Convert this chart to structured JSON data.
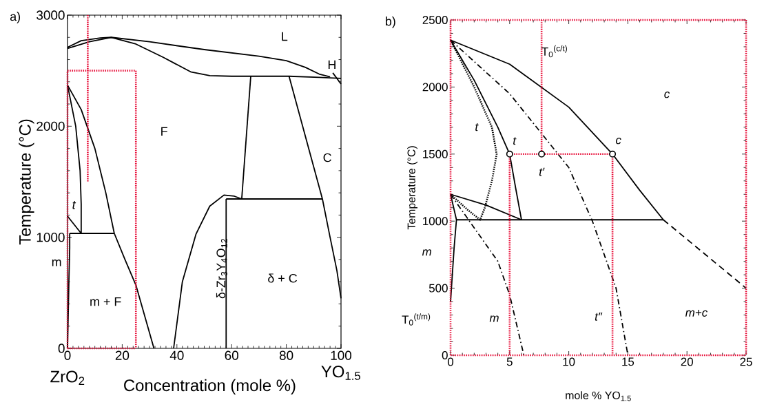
{
  "chart_data": [
    {
      "type": "line",
      "title": "a)",
      "xlabel": "Concentration (mole %)",
      "ylabel": "Temperature  (°C)",
      "xlim": [
        0,
        100
      ],
      "ylim": [
        0,
        3000
      ],
      "xticks": [
        0,
        20,
        40,
        60,
        80,
        100
      ],
      "yticks": [
        0,
        1000,
        2000,
        3000
      ],
      "series": [
        {
          "x": [
            0,
            5,
            12,
            16,
            30,
            50,
            70,
            80,
            87,
            92,
            96
          ],
          "values": [
            2710,
            2770,
            2795,
            2800,
            2760,
            2690,
            2630,
            2590,
            2530,
            2470,
            2445
          ],
          "color": "#000000",
          "line_style": "solid"
        },
        {
          "x": [
            0,
            8,
            16,
            25,
            35,
            45,
            52,
            60,
            67,
            81,
            92,
            100
          ],
          "values": [
            2700,
            2760,
            2800,
            2740,
            2620,
            2490,
            2455,
            2450,
            2450,
            2450,
            2440,
            2430
          ],
          "color": "#000000",
          "line_style": "solid"
        },
        {
          "x": [
            67,
            63.7
          ],
          "values": [
            2450,
            1345
          ],
          "color": "#000000",
          "line_style": "solid"
        },
        {
          "x": [
            81,
            93.2,
            96,
            98.5,
            100
          ],
          "values": [
            2450,
            1345,
            1000,
            700,
            450
          ],
          "color": "#000000",
          "line_style": "solid"
        },
        {
          "x": [
            58,
            93.2
          ],
          "values": [
            1345,
            1345
          ],
          "color": "#000000",
          "line_style": "solid"
        },
        {
          "x": [
            38.8,
            42,
            47,
            52,
            57.2,
            61,
            63.7
          ],
          "values": [
            0,
            600,
            1030,
            1280,
            1380,
            1370,
            1345
          ],
          "color": "#000000",
          "line_style": "solid"
        },
        {
          "x": [
            58,
            58
          ],
          "values": [
            0,
            1345
          ],
          "color": "#000000",
          "line_style": "solid"
        },
        {
          "x": [
            0,
            5,
            10,
            14,
            17.1,
            21,
            25,
            31.6
          ],
          "values": [
            2370,
            2150,
            1800,
            1400,
            1035,
            800,
            570,
            0
          ],
          "color": "#000000",
          "line_style": "solid"
        },
        {
          "x": [
            0,
            3,
            4.6,
            5,
            5
          ],
          "values": [
            2370,
            2000,
            1600,
            1300,
            1035
          ],
          "color": "#000000",
          "line_style": "solid"
        },
        {
          "x": [
            0.8,
            17.1
          ],
          "values": [
            1035,
            1035
          ],
          "color": "#000000",
          "line_style": "solid"
        },
        {
          "x": [
            0,
            5
          ],
          "values": [
            1190,
            1035
          ],
          "color": "#000000",
          "line_style": "solid"
        },
        {
          "x": [
            0,
            0.5,
            0.8,
            0.8
          ],
          "values": [
            0,
            600,
            900,
            1035
          ],
          "color": "#000000",
          "line_style": "solid"
        },
        {
          "x": [
            97,
            100
          ],
          "values": [
            2480,
            2380
          ],
          "color": "#000000",
          "line_style": "solid"
        },
        {
          "x": [
            0,
            25
          ],
          "values": [
            2500,
            2500
          ],
          "color": "#e8103a",
          "line_style": "dotted"
        },
        {
          "x": [
            25,
            25
          ],
          "values": [
            2500,
            0
          ],
          "color": "#e8103a",
          "line_style": "dotted"
        },
        {
          "x": [
            0,
            25
          ],
          "values": [
            0,
            0
          ],
          "color": "#e8103a",
          "line_style": "dotted"
        },
        {
          "x": [
            0,
            0
          ],
          "values": [
            0,
            2500
          ],
          "color": "#e8103a",
          "line_style": "dotted"
        },
        {
          "x": [
            7.4,
            7.4
          ],
          "values": [
            3000,
            1500
          ],
          "color": "#e8103a",
          "line_style": "dotted"
        }
      ],
      "annotations": [
        "L",
        "H",
        "F",
        "C",
        "t",
        "m",
        "m + F",
        "δ-Zr$_{3}$Y$_{4}$O$_{12}$",
        "δ + C",
        "ZrO$_{2}$",
        "YO$_{1.5}$"
      ]
    },
    {
      "type": "line",
      "title": "b)",
      "xlabel": "mole % YO$_{1.5}$",
      "ylabel": "Temperature (°C)",
      "xlim": [
        0,
        25
      ],
      "ylim": [
        0,
        2500
      ],
      "xticks": [
        0,
        5,
        10,
        15,
        20,
        25
      ],
      "yticks": [
        0,
        500,
        1000,
        1500,
        2000,
        2500
      ],
      "series": [
        {
          "x": [
            0,
            5,
            10,
            13.7,
            16,
            18
          ],
          "values": [
            2350,
            2170,
            1850,
            1500,
            1230,
            1010
          ],
          "color": "#000000",
          "line_style": "solid"
        },
        {
          "x": [
            0,
            2,
            4,
            5,
            5.5,
            6
          ],
          "values": [
            2350,
            2050,
            1700,
            1500,
            1250,
            1010
          ],
          "color": "#000000",
          "line_style": "solid"
        },
        {
          "x": [
            0,
            2,
            3.5,
            3.9,
            3.5,
            2.9,
            2.5,
            1.5,
            0
          ],
          "values": [
            2350,
            2000,
            1700,
            1500,
            1300,
            1100,
            1010,
            1080,
            1200
          ],
          "color": "#000000",
          "line_style": "dotted"
        },
        {
          "x": [
            0,
            5,
            10,
            12,
            14,
            15
          ],
          "values": [
            2350,
            1950,
            1400,
            1000,
            500,
            0
          ],
          "color": "#000000",
          "line_style": "dashdot"
        },
        {
          "x": [
            0,
            2,
            4,
            5,
            6.2
          ],
          "values": [
            1200,
            950,
            700,
            450,
            0
          ],
          "color": "#000000",
          "line_style": "dashdot"
        },
        {
          "x": [
            0,
            3,
            6
          ],
          "values": [
            1200,
            1120,
            1010
          ],
          "color": "#000000",
          "line_style": "solid"
        },
        {
          "x": [
            0.5,
            18
          ],
          "values": [
            1010,
            1010
          ],
          "color": "#000000",
          "line_style": "solid"
        },
        {
          "x": [
            18,
            25
          ],
          "values": [
            1010,
            500
          ],
          "color": "#000000",
          "line_style": "dashed"
        },
        {
          "x": [
            0,
            0.3,
            0.5,
            0
          ],
          "values": [
            400,
            800,
            1010,
            1200
          ],
          "color": "#000000",
          "line_style": "solid"
        },
        {
          "x": [
            0,
            25
          ],
          "values": [
            2500,
            2500
          ],
          "color": "#e8103a",
          "line_style": "dotted"
        },
        {
          "x": [
            25,
            25
          ],
          "values": [
            2500,
            0
          ],
          "color": "#e8103a",
          "line_style": "dotted"
        },
        {
          "x": [
            0,
            25
          ],
          "values": [
            0,
            0
          ],
          "color": "#e8103a",
          "line_style": "dotted"
        },
        {
          "x": [
            0,
            0
          ],
          "values": [
            0,
            2500
          ],
          "color": "#e8103a",
          "line_style": "dotted"
        },
        {
          "x": [
            7.7,
            7.7
          ],
          "values": [
            2500,
            1500
          ],
          "color": "#e8103a",
          "line_style": "dotted"
        },
        {
          "x": [
            5,
            13.7
          ],
          "values": [
            1500,
            1500
          ],
          "color": "#e8103a",
          "line_style": "dotted"
        },
        {
          "x": [
            5,
            5
          ],
          "values": [
            1500,
            0
          ],
          "color": "#e8103a",
          "line_style": "dotted"
        },
        {
          "x": [
            13.7,
            13.7
          ],
          "values": [
            1500,
            0
          ],
          "color": "#e8103a",
          "line_style": "dotted"
        },
        {
          "type": "scatter",
          "x": [
            5,
            7.7,
            13.7
          ],
          "values": [
            1500,
            1500,
            1500
          ],
          "color": "#000000",
          "marker": "circle"
        }
      ],
      "annotations": [
        "c",
        "t",
        "t",
        "c",
        "t′",
        "T$_{0}$$^{(c/t)}$",
        "m",
        "T$_{0}$$^{(t/m)}$",
        "m",
        "t″",
        "m+c"
      ]
    }
  ]
}
